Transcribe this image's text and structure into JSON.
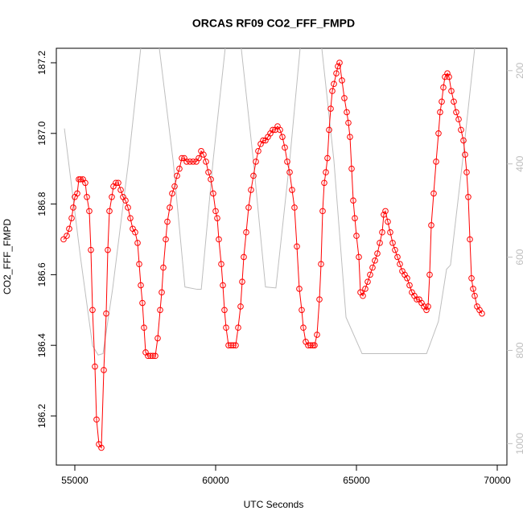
{
  "chart_data": {
    "type": "line",
    "title": "ORCAS RF09 CO2_FFF_FMPD",
    "x_label": "UTC Seconds",
    "y_label": "CO2_FFF_FMPD",
    "xlim": [
      54343,
      70343
    ],
    "ylim": [
      186.061,
      187.241
    ],
    "y2lim": [
      1046,
      152
    ],
    "xticks": [
      55000,
      60000,
      65000,
      70000
    ],
    "yticks": [
      186.2,
      186.4,
      186.6,
      186.8,
      {
        "value": 187,
        "label": "187.0"
      },
      187.2
    ],
    "y2ticks": [
      200,
      400,
      600,
      800,
      1000
    ],
    "series": [
      {
        "color": "#bebebe",
        "axis": "y2",
        "marker": "none",
        "x": [
          54630,
          55200,
          55630,
          55830,
          56000,
          56340,
          56910,
          57340,
          57500,
          57850,
          58000,
          58490,
          58910,
          59340,
          59490,
          59910,
          60340,
          60500,
          60750,
          60910,
          61340,
          61770,
          62140,
          62630,
          63000,
          63150,
          63600,
          63770,
          64200,
          64630,
          65200,
          67490,
          67910,
          68200,
          68340,
          68770,
          69200,
          69350
        ],
        "values": [
          324,
          600,
          790,
          810,
          807,
          669,
          393,
          152,
          100,
          100,
          152,
          393,
          664,
          669,
          669,
          393,
          152,
          100,
          100,
          152,
          393,
          664,
          666,
          393,
          152,
          100,
          100,
          152,
          393,
          729,
          807,
          807,
          738,
          626,
          617,
          393,
          152,
          100
        ]
      },
      {
        "color": "#ff0000",
        "marker": "circle",
        "x": [
          54600,
          54714,
          54800,
          54886,
          54943,
          55000,
          55086,
          55143,
          55200,
          55286,
          55371,
          55429,
          55514,
          55571,
          55629,
          55714,
          55771,
          55857,
          55943,
          56029,
          56114,
          56171,
          56229,
          56314,
          56371,
          56457,
          56543,
          56629,
          56714,
          56800,
          56886,
          56971,
          57057,
          57143,
          57229,
          57286,
          57343,
          57400,
          57457,
          57514,
          57600,
          57686,
          57771,
          57857,
          57943,
          58029,
          58086,
          58143,
          58229,
          58286,
          58371,
          58457,
          58543,
          58629,
          58714,
          58800,
          58886,
          58971,
          59086,
          59200,
          59314,
          59400,
          59486,
          59571,
          59657,
          59743,
          59829,
          59914,
          60000,
          60057,
          60114,
          60200,
          60257,
          60314,
          60371,
          60457,
          60543,
          60629,
          60714,
          60800,
          60886,
          60943,
          61000,
          61086,
          61171,
          61257,
          61343,
          61429,
          61514,
          61600,
          61686,
          61771,
          61857,
          61943,
          62029,
          62114,
          62200,
          62286,
          62371,
          62457,
          62543,
          62629,
          62714,
          62800,
          62886,
          62971,
          63057,
          63114,
          63200,
          63286,
          63371,
          63457,
          63514,
          63600,
          63686,
          63743,
          63800,
          63857,
          63914,
          63971,
          64029,
          64086,
          64143,
          64200,
          64286,
          64343,
          64400,
          64486,
          64571,
          64657,
          64714,
          64771,
          64829,
          64886,
          64943,
          65000,
          65086,
          65143,
          65229,
          65314,
          65400,
          65486,
          65571,
          65657,
          65743,
          65829,
          65914,
          65971,
          66029,
          66114,
          66200,
          66286,
          66371,
          66457,
          66543,
          66629,
          66714,
          66800,
          66886,
          66971,
          67057,
          67143,
          67229,
          67314,
          67400,
          67486,
          67543,
          67600,
          67657,
          67743,
          67829,
          67914,
          67971,
          68029,
          68086,
          68143,
          68229,
          68286,
          68371,
          68457,
          68543,
          68629,
          68714,
          68800,
          68857,
          68914,
          68971,
          69029,
          69086,
          69143,
          69200,
          69286,
          69371,
          69457
        ],
        "values": [
          186.7,
          186.71,
          186.73,
          186.76,
          186.79,
          186.82,
          186.83,
          186.87,
          186.87,
          186.87,
          186.86,
          186.82,
          186.78,
          186.67,
          186.5,
          186.34,
          186.19,
          186.12,
          186.11,
          186.33,
          186.49,
          186.67,
          186.78,
          186.82,
          186.85,
          186.86,
          186.86,
          186.84,
          186.82,
          186.81,
          186.79,
          186.76,
          186.73,
          186.72,
          186.69,
          186.63,
          186.57,
          186.52,
          186.45,
          186.38,
          186.37,
          186.37,
          186.37,
          186.37,
          186.42,
          186.5,
          186.55,
          186.62,
          186.7,
          186.75,
          186.79,
          186.83,
          186.85,
          186.88,
          186.9,
          186.93,
          186.93,
          186.92,
          186.92,
          186.92,
          186.92,
          186.93,
          186.95,
          186.94,
          186.92,
          186.89,
          186.87,
          186.83,
          186.78,
          186.76,
          186.7,
          186.63,
          186.57,
          186.5,
          186.45,
          186.4,
          186.4,
          186.4,
          186.4,
          186.45,
          186.51,
          186.58,
          186.65,
          186.72,
          186.79,
          186.84,
          186.88,
          186.92,
          186.95,
          186.97,
          186.98,
          186.98,
          186.99,
          187.0,
          187.01,
          187.01,
          187.02,
          187.01,
          186.99,
          186.96,
          186.92,
          186.89,
          186.84,
          186.79,
          186.68,
          186.56,
          186.5,
          186.45,
          186.41,
          186.4,
          186.4,
          186.4,
          186.4,
          186.43,
          186.53,
          186.63,
          186.78,
          186.86,
          186.89,
          186.93,
          187.01,
          187.07,
          187.12,
          187.14,
          187.17,
          187.19,
          187.2,
          187.15,
          187.1,
          187.06,
          187.03,
          186.99,
          186.9,
          186.81,
          186.76,
          186.71,
          186.65,
          186.55,
          186.54,
          186.56,
          186.58,
          186.6,
          186.62,
          186.64,
          186.66,
          186.69,
          186.72,
          186.77,
          186.78,
          186.75,
          186.72,
          186.69,
          186.67,
          186.65,
          186.63,
          186.61,
          186.6,
          186.59,
          186.57,
          186.55,
          186.54,
          186.53,
          186.53,
          186.52,
          186.51,
          186.5,
          186.51,
          186.6,
          186.74,
          186.83,
          186.92,
          187.0,
          187.06,
          187.09,
          187.13,
          187.16,
          187.17,
          187.16,
          187.12,
          187.09,
          187.06,
          187.04,
          187.01,
          186.98,
          186.94,
          186.89,
          186.82,
          186.7,
          186.59,
          186.56,
          186.54,
          186.51,
          186.5,
          186.49
        ]
      }
    ]
  }
}
